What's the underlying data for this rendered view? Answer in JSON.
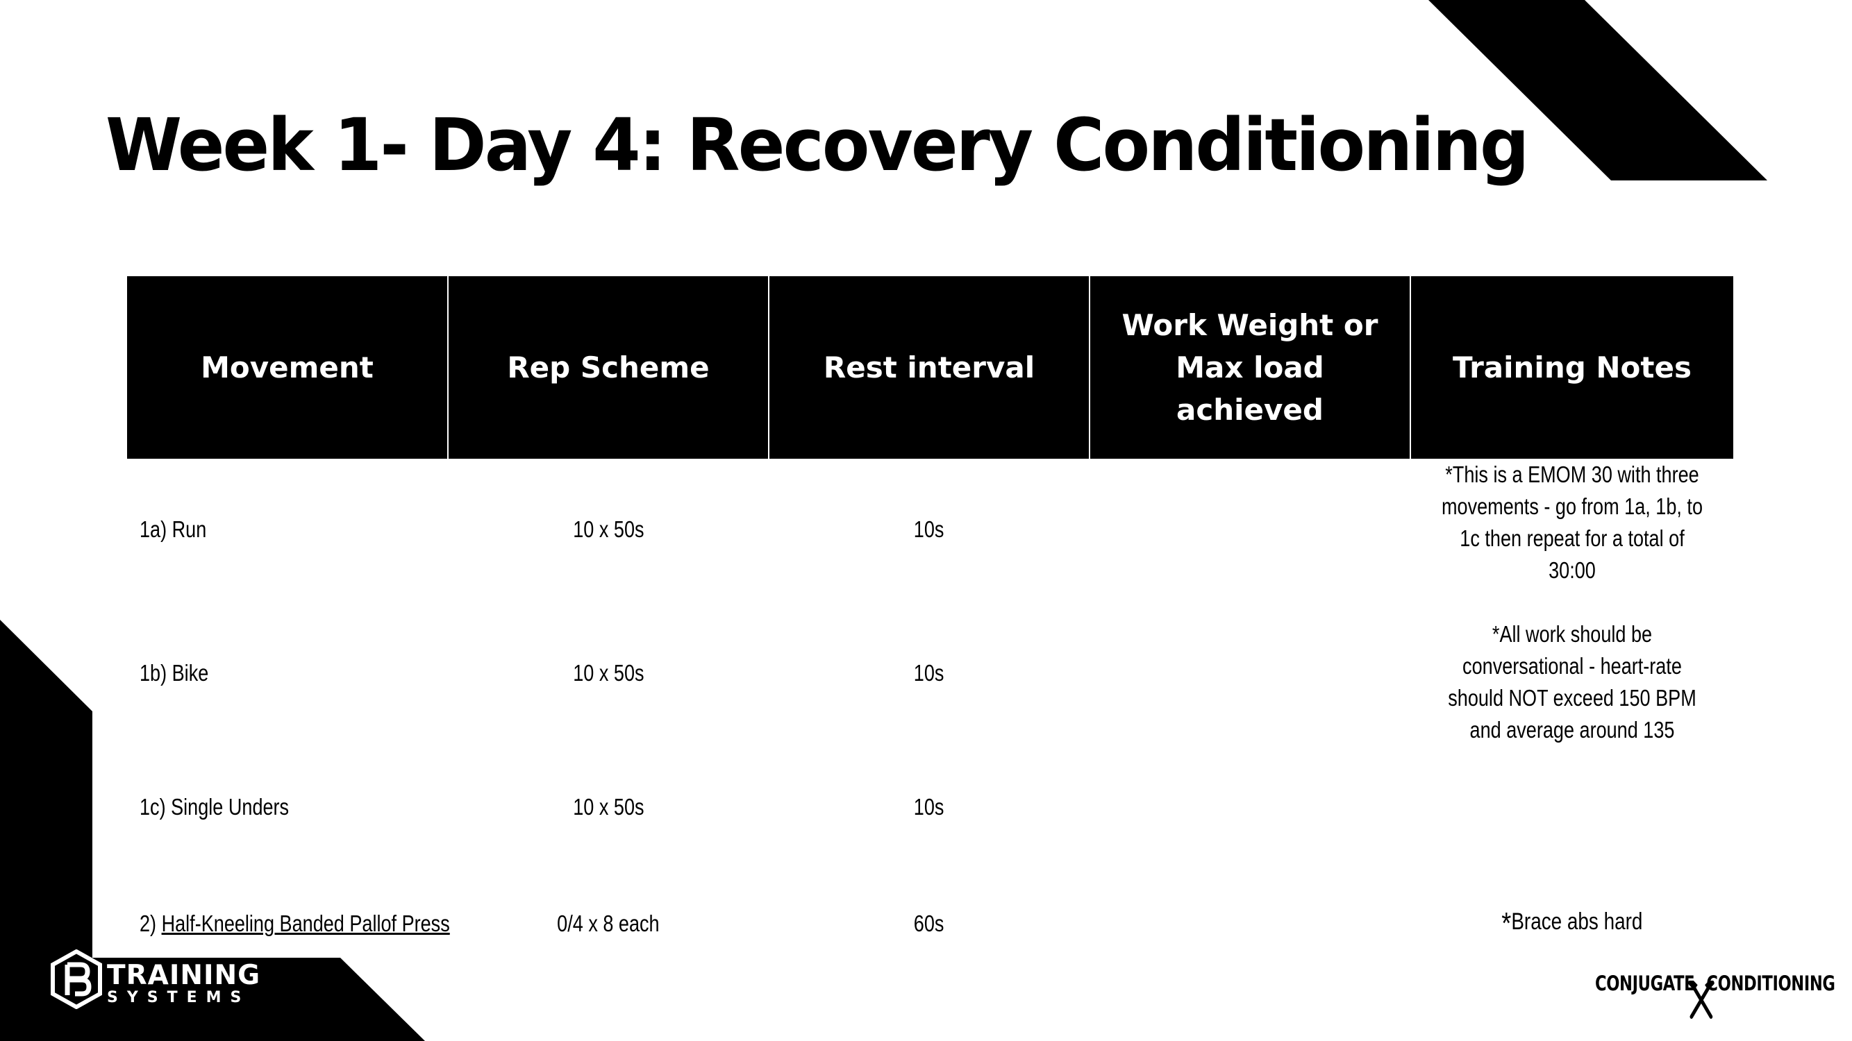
{
  "page": {
    "title": "Week 1- Day 4: Recovery Conditioning"
  },
  "table": {
    "headers": [
      "Movement",
      "Rep Scheme",
      "Rest interval",
      "Work Weight or Max load achieved",
      "Training Notes"
    ],
    "rows": [
      {
        "movement": "1a) Run",
        "rep_scheme": "10 x 50s",
        "rest": "10s",
        "work_weight": ""
      },
      {
        "movement": "1b) Bike",
        "rep_scheme": "10 x 50s",
        "rest": "10s",
        "work_weight": ""
      },
      {
        "movement": "1c) Single Unders",
        "rep_scheme": "10 x 50s",
        "rest": "10s",
        "work_weight": ""
      },
      {
        "movement_prefix": "2) ",
        "movement_link": "Half-Kneeling Banded Pallof Press",
        "rep_scheme": "0/4 x 8 each",
        "rest": "60s",
        "work_weight": ""
      }
    ],
    "notes": {
      "note_1": "*This is a EMOM 30 with three movements - go from 1a, 1b, to 1c then repeat for a total of 30:00",
      "note_2": "*All work should be conversational - heart-rate should NOT exceed 150 BPM and average around 135",
      "note_3_star": "*",
      "note_3_text": "Brace abs hard"
    }
  },
  "branding": {
    "left_logo_line1": "TRAINING",
    "left_logo_line2": "SYSTEMS",
    "right_logo_part1": "CONJUGATE",
    "right_logo_part2": "CONDITIONING"
  },
  "colors": {
    "primary": "#000000",
    "background": "#ffffff"
  },
  "icons": {
    "left_logo": "shield-monogram-icon",
    "right_logo": "crossed-hammers-icon"
  }
}
